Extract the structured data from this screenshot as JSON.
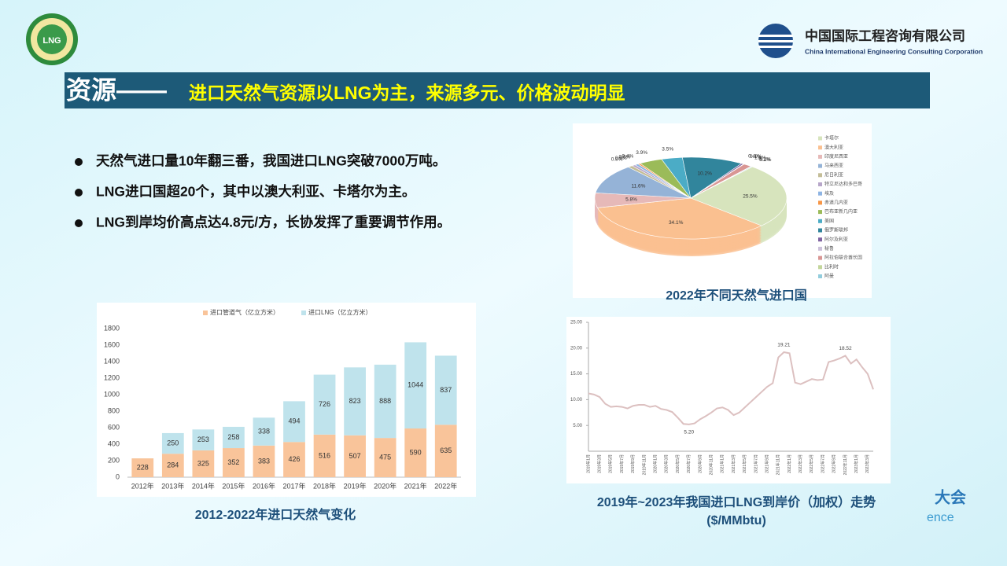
{
  "header": {
    "logo_text": "LNG",
    "company_cn": "中国国际工程咨询有限公司",
    "company_en": "China International Engineering Consulting Corporation"
  },
  "title": {
    "prefix": "资源——",
    "text": "进口天然气资源以LNG为主，来源多元、价格波动明显"
  },
  "bullets": [
    "天然气进口量10年翻三番，我国进口LNG突破7000万吨。",
    "LNG进口国超20个，其中以澳大利亚、卡塔尔为主。",
    "LNG到岸均价高点达4.8元/方，长协发挥了重要调节作用。"
  ],
  "watermark": [
    "大会",
    "ence"
  ],
  "chart_data": [
    {
      "type": "bar",
      "stacked": true,
      "caption": "2012-2022年进口天然气变化",
      "categories": [
        "2012年",
        "2013年",
        "2014年",
        "2015年",
        "2016年",
        "2017年",
        "2018年",
        "2019年",
        "2020年",
        "2021年",
        "2022年"
      ],
      "series": [
        {
          "name": "进口管道气（亿立方米）",
          "color": "#f9c49a",
          "values": [
            228,
            284,
            325,
            352,
            383,
            426,
            516,
            507,
            475,
            590,
            635
          ]
        },
        {
          "name": "进口LNG（亿立方米）",
          "color": "#bfe3ec",
          "values": [
            null,
            250,
            253,
            258,
            338,
            494,
            726,
            823,
            888,
            1044,
            837
          ]
        }
      ],
      "ylim": [
        0,
        1800
      ],
      "yticks": [
        0,
        200,
        400,
        600,
        800,
        1000,
        1200,
        1400,
        1600,
        1800
      ],
      "grid": false,
      "legend": "top"
    },
    {
      "type": "pie",
      "caption": "2022年不同天然气进口国",
      "categories": [
        "卡塔尔",
        "澳大利亚",
        "印度尼西亚",
        "马来西亚",
        "尼日利亚",
        "特立尼达和多巴哥",
        "埃及",
        "赤道几内亚",
        "巴布亚新几内亚",
        "美国",
        "俄罗斯联邦",
        "阿尔及利亚",
        "秘鲁",
        "阿拉伯联合酋长国",
        "比利时",
        "阿曼"
      ],
      "values": [
        25.5,
        34.1,
        5.8,
        11.6,
        0.8,
        0.6,
        0.6,
        0.4,
        3.9,
        3.5,
        10.2,
        0.4,
        0.1,
        1.4,
        0.1,
        0.2
      ],
      "value_labels": [
        "25.5%",
        "34.1%",
        "5.8%",
        "11.6%",
        "0.8%",
        "0.6%",
        "0.6%",
        "0.4%",
        "3.9%",
        "3.5%",
        "10.2%",
        "0.4%",
        "0.1%",
        "1.4%",
        "0.1%",
        "0.2%"
      ],
      "colors": [
        "#d7e4bd",
        "#fac090",
        "#e6b9b8",
        "#95b3d7",
        "#c4bd97",
        "#b7a6c9",
        "#8eb4e3",
        "#f79646",
        "#9bbb59",
        "#4bacc6",
        "#31859c",
        "#8064a2",
        "#ccc1da",
        "#d99694",
        "#c3d69b",
        "#93cddd"
      ],
      "legend": "right"
    },
    {
      "type": "line",
      "caption": "2019年~2023年我国进口LNG到岸价（加权）走势",
      "unit": "($/MMbtu)",
      "categories": [
        "2019年1月",
        null,
        "2019年3月",
        null,
        "2019年5月",
        null,
        "2019年7月",
        null,
        "2019年9月",
        null,
        "2019年11月",
        null,
        "2020年1月",
        null,
        "2020年3月",
        null,
        "2020年5月",
        null,
        "2020年7月",
        null,
        "2020年9月",
        null,
        "2020年11月",
        null,
        "2021年1月",
        null,
        "2021年3月",
        null,
        "2021年5月",
        null,
        "2021年7月",
        null,
        "2021年9月",
        null,
        "2021年11月",
        null,
        "2022年1月",
        null,
        "2022年3月",
        null,
        "2022年5月",
        null,
        "2022年7月",
        null,
        "2022年9月",
        null,
        "2022年11月",
        null,
        "2023年1月",
        null,
        "2023年3月",
        null
      ],
      "series": [
        {
          "name": "到岸价",
          "color": "#dcc0c0",
          "values": [
            11.2,
            11.0,
            10.5,
            9.2,
            8.6,
            8.7,
            8.6,
            8.3,
            8.8,
            9.0,
            9.0,
            8.6,
            8.8,
            8.2,
            8.0,
            7.6,
            6.5,
            5.3,
            5.2,
            5.4,
            6.2,
            6.8,
            7.5,
            8.3,
            8.5,
            8.0,
            7.0,
            7.5,
            8.5,
            9.5,
            10.5,
            11.5,
            12.5,
            13.2,
            18.2,
            19.21,
            19.0,
            13.3,
            13.0,
            13.5,
            14.0,
            13.8,
            13.9,
            17.3,
            17.6,
            18.0,
            18.52,
            17.0,
            17.8,
            16.3,
            15.0,
            12.0
          ],
          "value_labels": [
            null,
            null,
            null,
            null,
            null,
            null,
            null,
            null,
            null,
            null,
            null,
            null,
            null,
            null,
            null,
            null,
            null,
            null,
            "5.20",
            null,
            null,
            null,
            null,
            null,
            null,
            null,
            null,
            null,
            null,
            null,
            null,
            null,
            null,
            null,
            null,
            "19.21",
            null,
            null,
            null,
            null,
            null,
            null,
            null,
            null,
            null,
            null,
            "18.52",
            null,
            null,
            null,
            null,
            null
          ]
        }
      ],
      "ylim": [
        0,
        25
      ],
      "yticks": [
        {
          "value": 5,
          "label": "5.00"
        },
        {
          "value": 10,
          "label": "10.00"
        },
        {
          "value": 15,
          "label": "15.00"
        },
        {
          "value": 20,
          "label": "20.00"
        },
        {
          "value": 25,
          "label": "25.00"
        }
      ],
      "grid": false
    }
  ]
}
